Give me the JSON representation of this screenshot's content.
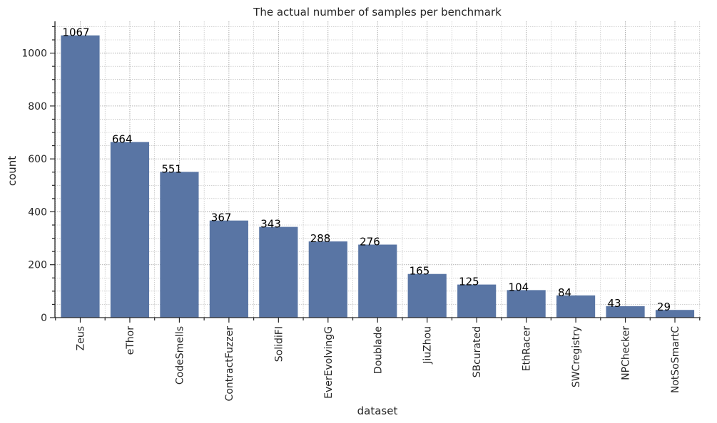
{
  "chart_data": {
    "type": "bar",
    "title": "The actual number of samples per benchmark",
    "xlabel": "dataset",
    "ylabel": "count",
    "categories": [
      "Zeus",
      "eThor",
      "CodeSmells",
      "ContractFuzzer",
      "SolidiFI",
      "EverEvolvingG",
      "Doublade",
      "JiuZhou",
      "SBcurated",
      "EthRacer",
      "SWCregistry",
      "NPChecker",
      "NotSoSmartC"
    ],
    "values": [
      1067,
      664,
      551,
      367,
      343,
      288,
      276,
      165,
      125,
      104,
      84,
      43,
      29
    ],
    "data_labels": [
      "1067",
      "664",
      "551",
      "367",
      "343",
      "288",
      "276",
      "165",
      "125",
      "104",
      "84",
      "43",
      "29"
    ],
    "ylim": [
      0,
      1120
    ],
    "yticks": [
      0,
      200,
      400,
      600,
      800,
      1000
    ],
    "ytick_labels": [
      "0",
      "200",
      "400",
      "600",
      "800",
      "1000"
    ],
    "y_minor_step": 50,
    "grid": true,
    "bar_color": "#5975a4"
  }
}
